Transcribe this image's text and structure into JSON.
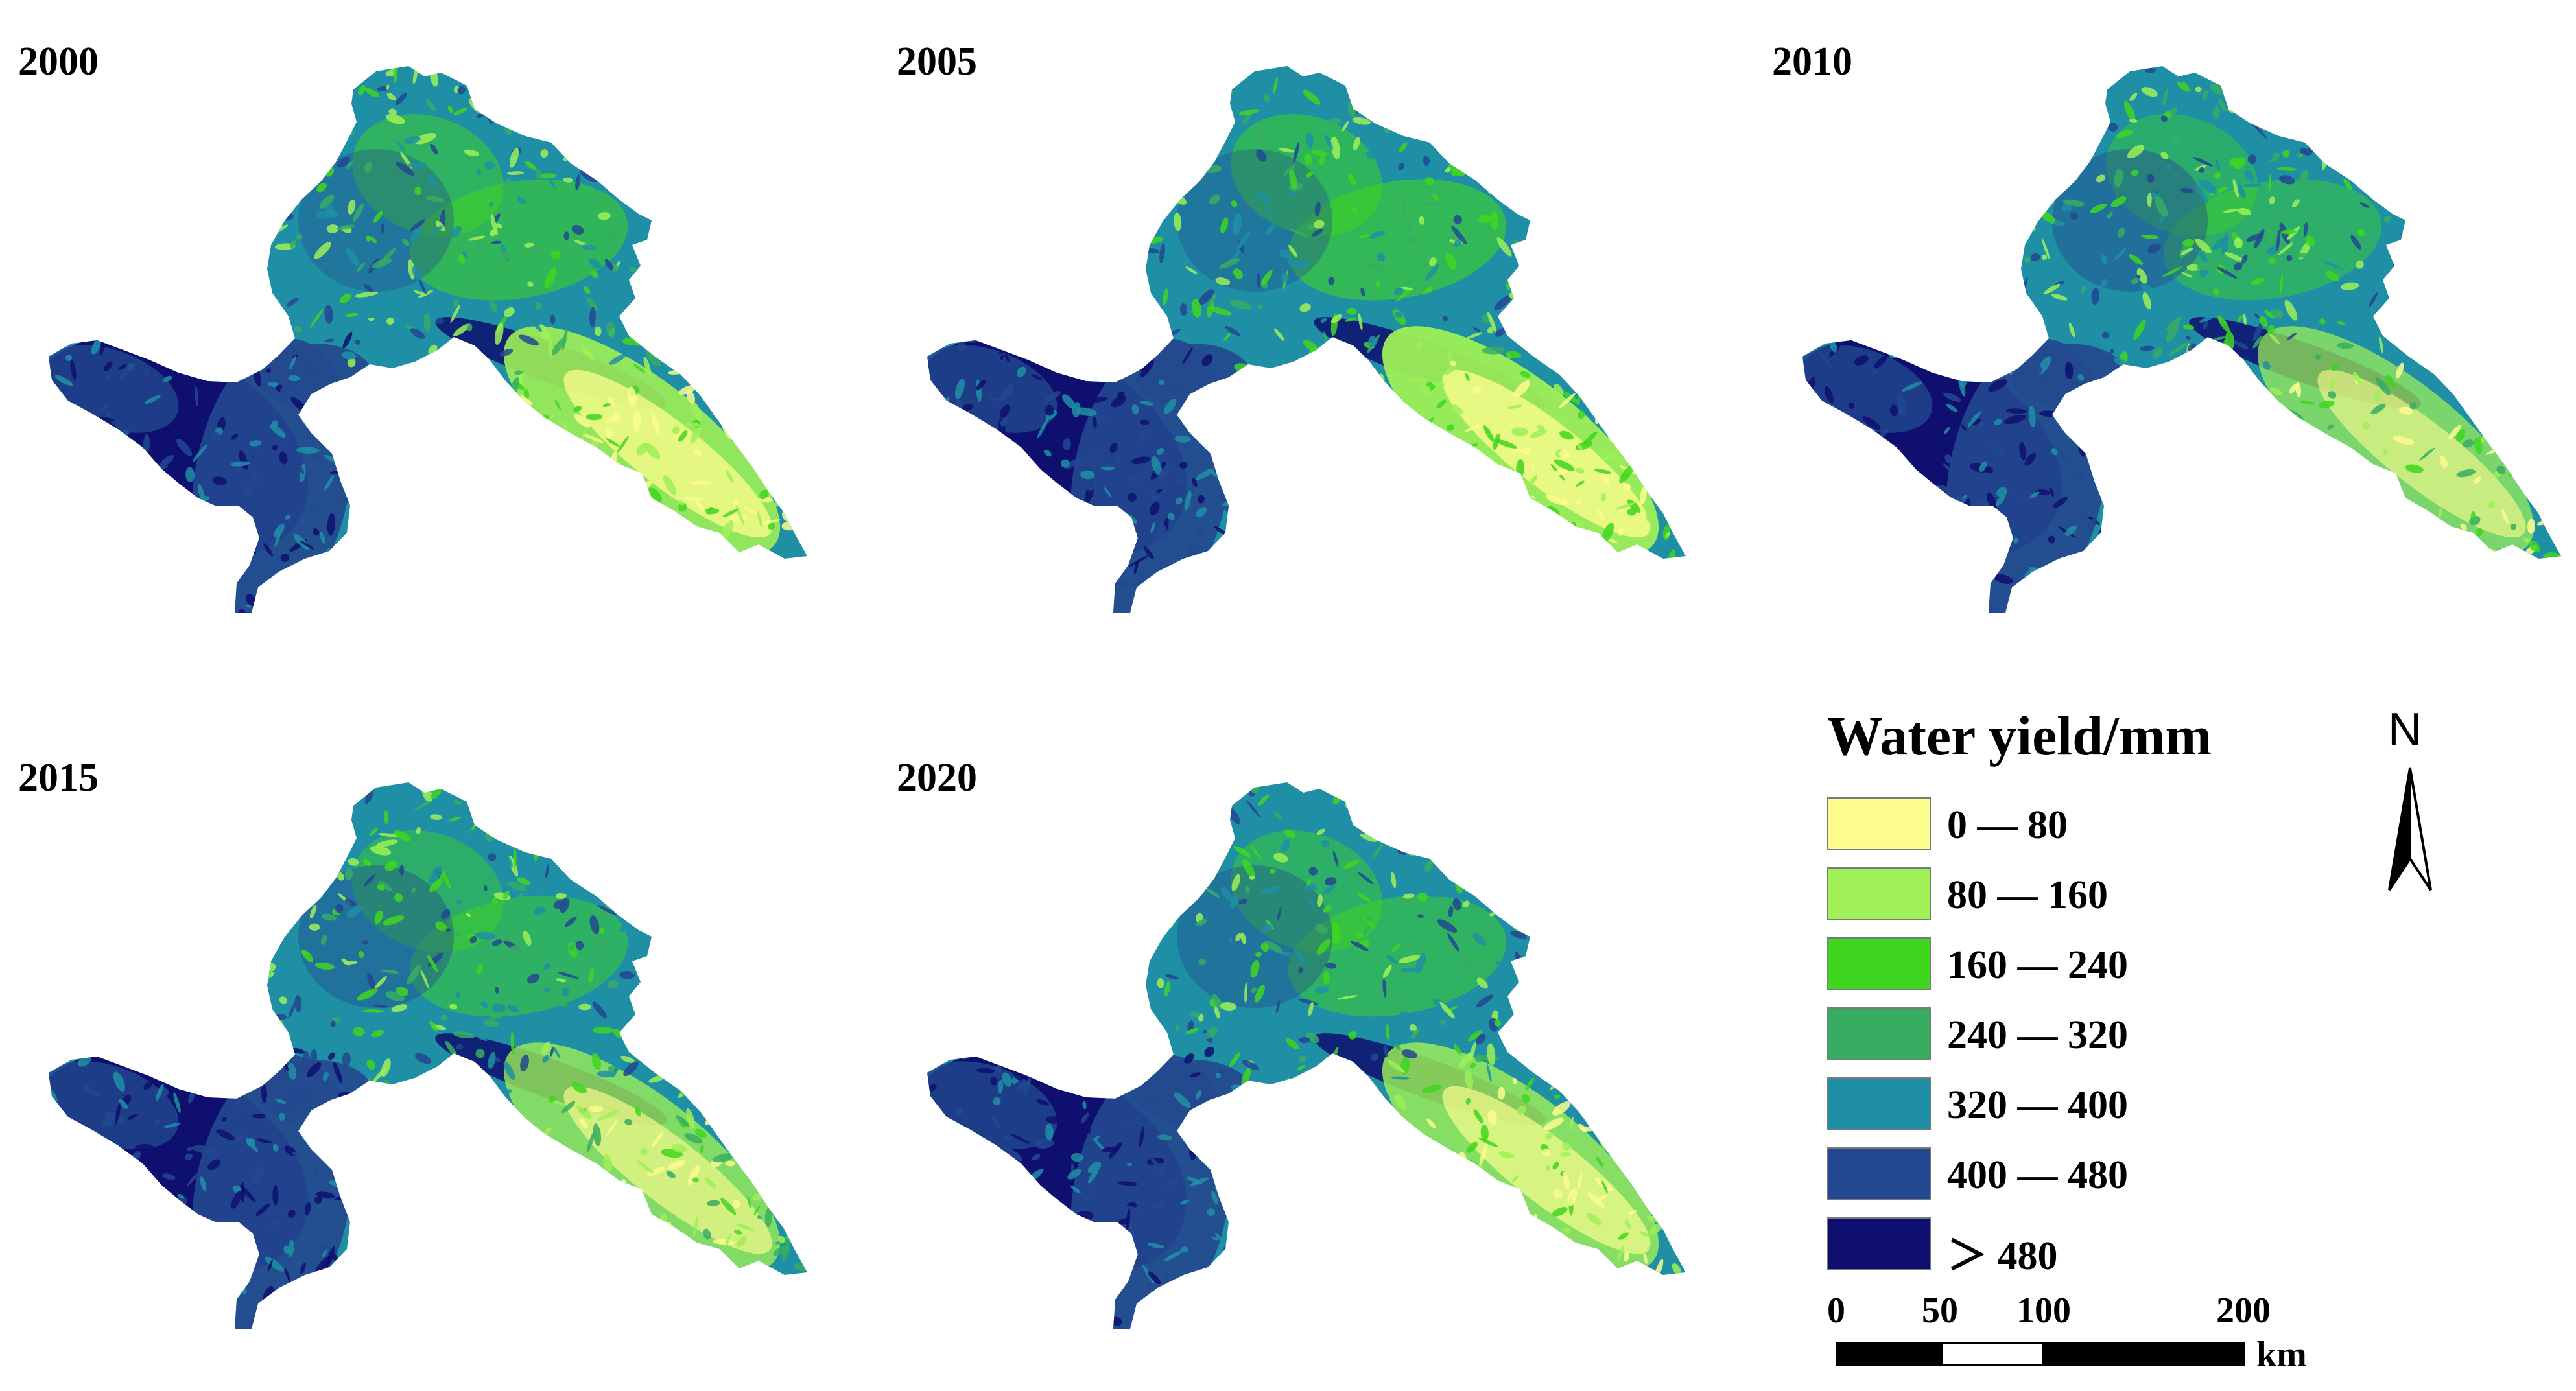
{
  "panels": [
    {
      "year": "2000"
    },
    {
      "year": "2005"
    },
    {
      "year": "2010"
    },
    {
      "year": "2015"
    },
    {
      "year": "2020"
    }
  ],
  "legend": {
    "title": "Water yield/mm",
    "classes": [
      {
        "label": "0 — 80",
        "color": "#fdfc8e"
      },
      {
        "label": "80 — 160",
        "color": "#9ef056"
      },
      {
        "label": "160 — 240",
        "color": "#3fd61f"
      },
      {
        "label": "240 — 320",
        "color": "#37ad62"
      },
      {
        "label": "320 — 400",
        "color": "#1f8fa5"
      },
      {
        "label": "400 — 480",
        "color": "#23488f"
      },
      {
        "label": "＞ 480",
        "color": "#0e0f6e"
      }
    ]
  },
  "north_arrow": {
    "letter": "N",
    "icon": "north-arrow-icon"
  },
  "scale_bar": {
    "ticks": [
      "0",
      "50",
      "100",
      "200"
    ],
    "unit": "km"
  }
}
